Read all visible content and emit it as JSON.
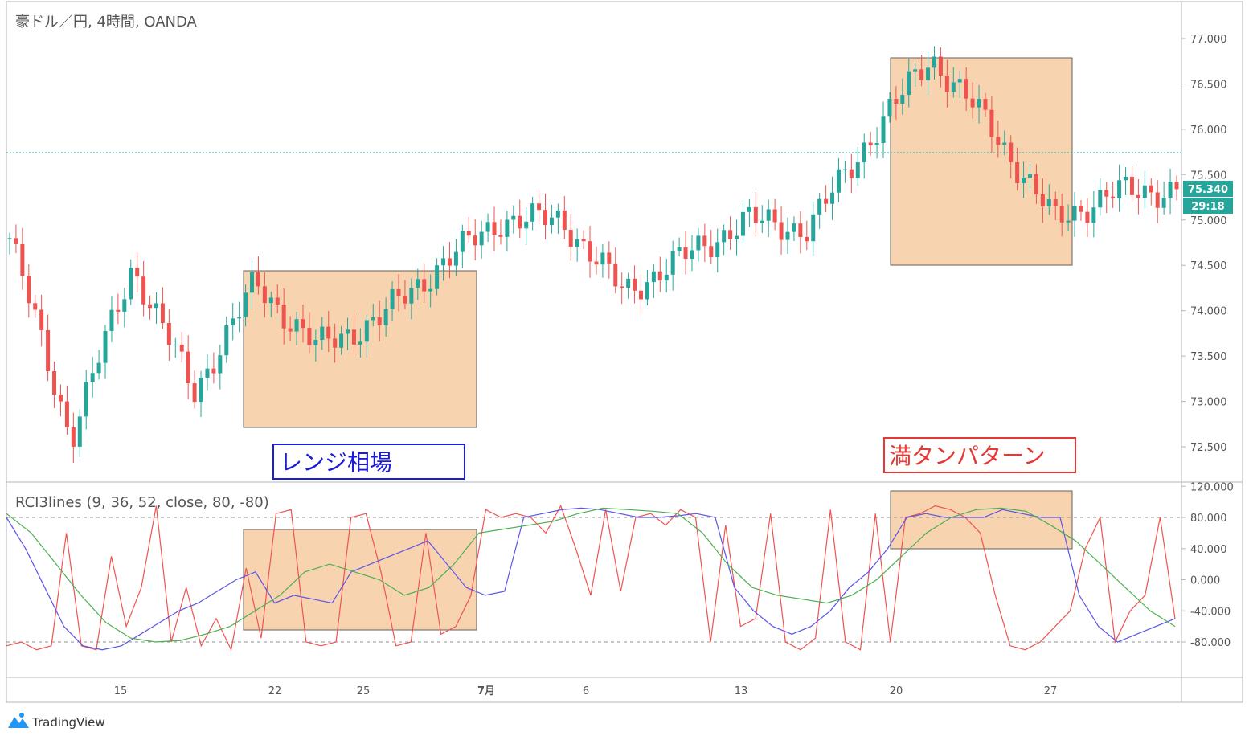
{
  "header": {
    "symbol_title": "豪ドル／円, 4時間, OANDA"
  },
  "price_pane": {
    "y_axis_ticks": [
      "77.000",
      "76.500",
      "76.000",
      "75.500",
      "75.000",
      "74.500",
      "74.000",
      "73.500",
      "73.000",
      "72.500"
    ],
    "current_price": "75.340",
    "countdown": "29:18",
    "reference_line_value": 75.73
  },
  "rci_pane": {
    "title": "RCI3lines (9, 36, 52, close, 80, -80)",
    "y_axis_ticks": [
      "120.000",
      "80.000",
      "40.000",
      "0.000",
      "-40.000",
      "-80.000"
    ],
    "upper_level": 80,
    "lower_level": -80
  },
  "x_axis": {
    "ticks": [
      "15",
      "22",
      "25",
      "7月",
      "6",
      "13",
      "20",
      "27"
    ]
  },
  "annotations": {
    "range_label": "レンジ相場",
    "pattern_label": "満タンパターン"
  },
  "brand": {
    "name": "TradingView"
  },
  "colors": {
    "up": "#26a69a",
    "down": "#ef5350",
    "highlight_fill": "#f8d3b0",
    "rci_short": "#ef5350",
    "rci_mid": "#5b55e6",
    "rci_long": "#4caf50",
    "range_label": "#1a1adb",
    "pattern_label": "#e53935"
  },
  "chart_data": [
    {
      "type": "candlestick",
      "title": "豪ドル／円, 4時間, OANDA",
      "ylim": [
        72.3,
        77.2
      ],
      "x_ticks": [
        "15",
        "22",
        "25",
        "7月",
        "6",
        "13",
        "20",
        "27"
      ],
      "key_points": [
        {
          "x": "start",
          "close": 74.8
        },
        {
          "x": "14",
          "close": 72.6
        },
        {
          "x": "17",
          "close": 74.5
        },
        {
          "x": "21",
          "close": 73.1
        },
        {
          "x": "23",
          "close": 74.3
        },
        {
          "x": "26",
          "close": 73.6
        },
        {
          "x": "29",
          "close": 73.9
        },
        {
          "x": "7月",
          "close": 74.5
        },
        {
          "x": "6",
          "close": 75.0
        },
        {
          "x": "10",
          "close": 75.0
        },
        {
          "x": "12",
          "close": 74.2
        },
        {
          "x": "14",
          "close": 74.6
        },
        {
          "x": "16",
          "close": 75.0
        },
        {
          "x": "20",
          "close": 74.9
        },
        {
          "x": "22",
          "close": 75.9
        },
        {
          "x": "23",
          "close": 76.8
        },
        {
          "x": "25",
          "close": 76.0
        },
        {
          "x": "26",
          "close": 75.0
        },
        {
          "x": "27",
          "close": 75.3
        },
        {
          "x": "end",
          "close": 75.34
        }
      ],
      "current_price": 75.34,
      "reference_line": 75.73
    },
    {
      "type": "line",
      "title": "RCI3lines (9, 36, 52, close, 80, -80)",
      "ylim": [
        -120,
        120
      ],
      "levels": [
        80,
        -80
      ],
      "series": [
        {
          "values": [
            -85,
            -80,
            -90,
            -85,
            60,
            -85,
            -90,
            30,
            -60,
            -10,
            95,
            -80,
            -10,
            -85,
            -50,
            -90,
            15,
            -75,
            85,
            90,
            -80,
            -85,
            -80,
            80,
            85,
            10,
            -85,
            -80,
            60,
            -70,
            -60,
            -20,
            90,
            80,
            85,
            80,
            60,
            95,
            40,
            -20,
            90,
            -15,
            80,
            85,
            70,
            90,
            80,
            -80,
            70,
            -60,
            -50,
            85,
            -80,
            -90,
            -75,
            90,
            -80,
            -90,
            85,
            -80,
            80,
            85,
            95,
            90,
            80,
            60,
            -20,
            -85,
            -90,
            -80,
            -60,
            -40,
            40,
            80,
            -80,
            -40,
            -20,
            80,
            -50
          ]
        },
        {
          "values": [
            80,
            40,
            -10,
            -60,
            -85,
            -90,
            -85,
            -70,
            -55,
            -40,
            -30,
            -15,
            0,
            10,
            -30,
            -20,
            -25,
            -30,
            10,
            20,
            30,
            40,
            50,
            20,
            -10,
            -20,
            -15,
            80,
            85,
            90,
            92,
            90,
            85,
            80,
            80,
            82,
            85,
            80,
            -10,
            -40,
            -60,
            -70,
            -60,
            -40,
            -10,
            10,
            40,
            80,
            85,
            80,
            80,
            80,
            90,
            85,
            80,
            80,
            -20,
            -60,
            -80,
            -70,
            -60,
            -50
          ]
        },
        {
          "values": [
            85,
            60,
            20,
            -20,
            -55,
            -75,
            -80,
            -78,
            -70,
            -60,
            -40,
            -20,
            10,
            20,
            10,
            0,
            -20,
            -10,
            20,
            60,
            65,
            70,
            75,
            85,
            92,
            90,
            88,
            85,
            60,
            20,
            -10,
            -20,
            -25,
            -30,
            -20,
            0,
            30,
            60,
            80,
            90,
            92,
            88,
            70,
            50,
            20,
            -10,
            -40,
            -60
          ]
        }
      ]
    }
  ]
}
